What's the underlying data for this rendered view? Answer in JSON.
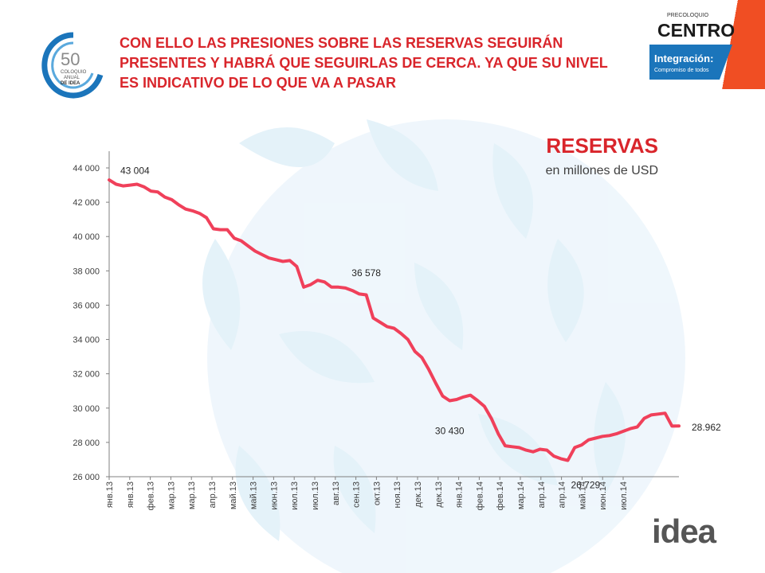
{
  "slide": {
    "headline": "CON ELLO LAS PRESIONES SOBRE LAS RESERVAS SEGUIRÁN PRESENTES Y HABRÁ QUE SEGUIRLAS DE CERCA. YA QUE SU NIVEL ES INDICATIVO DE LO QUE VA A PASAR",
    "logo_left": {
      "number": "50",
      "line1": "COLOQUIO",
      "line2": "ANUAL",
      "line3": "DE IDEA"
    },
    "logo_right": {
      "pre": "PRECOLOQUIO",
      "name": "CENTRO",
      "tag": "Integración:",
      "sub": "Compromiso de todos"
    },
    "logo_bottom": "idea",
    "colors": {
      "accent": "#d9252b",
      "line": "#f0405a",
      "brand_blue": "#1b75bb",
      "orange": "#f04e23"
    }
  },
  "chart_data": {
    "type": "line",
    "title": "RESERVAS",
    "subtitle": "en millones de USD",
    "ylim": [
      26000,
      45000
    ],
    "yticks": [
      26000,
      28000,
      30000,
      32000,
      34000,
      36000,
      38000,
      40000,
      42000,
      44000
    ],
    "ytick_labels": [
      "26 000",
      "28 000",
      "30 000",
      "32 000",
      "34 000",
      "36 000",
      "38 000",
      "40 000",
      "42 000",
      "44 000"
    ],
    "xtick_labels": [
      "янв.13",
      "янв.13",
      "фев.13",
      "мар.13",
      "мар.13",
      "апр.13",
      "май.13",
      "май.13",
      "июн.13",
      "июл.13",
      "июл.13",
      "авг.13",
      "сен.13",
      "окт.13",
      "ноя.13",
      "дек.13",
      "дек.13",
      "янв.14",
      "фев.14",
      "фев.14",
      "мар.14",
      "апр.14",
      "апр.14",
      "май.14",
      "июн.14",
      "июл.14"
    ],
    "grid": false,
    "legend": "none",
    "series": [
      {
        "y": [
          43300,
          43050,
          42950,
          43000,
          43050,
          42900,
          42650,
          42600,
          42300,
          42150,
          41850,
          41600,
          41500,
          41350,
          41100,
          40450,
          40400,
          40400,
          39900,
          39750,
          39450,
          39150,
          38950,
          38750,
          38650,
          38550,
          38600,
          38250,
          37050,
          37200,
          37450,
          37350,
          37050,
          37050,
          37000,
          36850,
          36650,
          36600,
          35250,
          35000,
          34750,
          34650,
          34350,
          34000,
          33300,
          32950,
          32250,
          31450,
          30700,
          30430,
          30500,
          30650,
          30750,
          30450,
          30100,
          29400,
          28500,
          27800,
          27750,
          27700,
          27550,
          27450,
          27600,
          27550,
          27200,
          27050,
          26950,
          27700,
          27850,
          28150,
          28250,
          28350,
          28400,
          28500,
          28650,
          28800,
          28900,
          29400,
          29600,
          29650,
          29700,
          28950,
          28962
        ]
      }
    ],
    "annotations": [
      {
        "text": "43 004",
        "x_index": 0,
        "value": 43004
      },
      {
        "text": "36 578",
        "x_index": 37,
        "value": 36578
      },
      {
        "text": "30 430",
        "x_index": 49,
        "value": 30430
      },
      {
        "text": "26 729",
        "x_index": 66,
        "value": 26729
      },
      {
        "text": "28.962",
        "x_index": 82,
        "value": 28962
      }
    ]
  }
}
